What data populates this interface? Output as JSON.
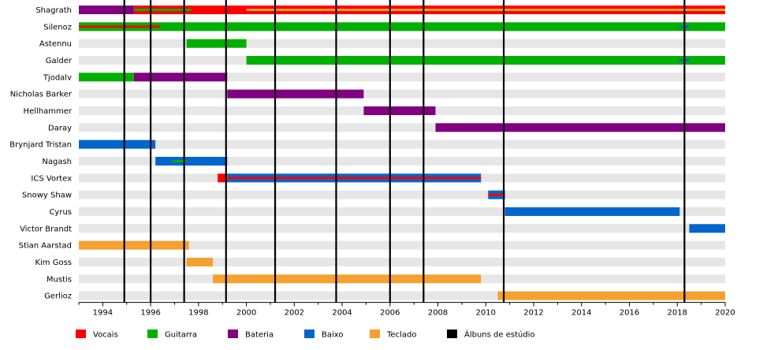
{
  "chart_data": {
    "type": "timeline",
    "xlim": [
      1993.0,
      2020.0
    ],
    "x_ticks": [
      "1994",
      "1996",
      "1998",
      "2000",
      "2002",
      "2004",
      "2006",
      "2008",
      "2010",
      "2012",
      "2014",
      "2016",
      "2018",
      "2020"
    ],
    "roles": [
      {
        "key": "vocals",
        "label": "Vocais",
        "color": "#ff0000"
      },
      {
        "key": "guitar",
        "label": "Guitarra",
        "color": "#00b000"
      },
      {
        "key": "drums",
        "label": "Bateria",
        "color": "#800080"
      },
      {
        "key": "bass",
        "label": "Baixo",
        "color": "#0066cc"
      },
      {
        "key": "keys",
        "label": "Teclado",
        "color": "#f5a030"
      },
      {
        "key": "albums",
        "label": "Álbuns de estúdio",
        "color": "#000000"
      }
    ],
    "albums": [
      1994.9,
      1996.0,
      1997.4,
      1999.15,
      2001.2,
      2003.75,
      2006.0,
      2007.4,
      2010.75,
      2018.3
    ],
    "members": [
      {
        "name": "Shagrath",
        "spans": [
          {
            "role": "drums",
            "start": 1993.0,
            "end": 1995.3
          },
          {
            "role": "vocals",
            "start": 1995.3,
            "end": 2020.0
          },
          {
            "role": "guitar",
            "start": 1995.3,
            "end": 1997.7,
            "sub": true
          },
          {
            "role": "keys",
            "start": 2000.0,
            "end": 2020.0,
            "sub": true
          }
        ]
      },
      {
        "name": "Silenoz",
        "spans": [
          {
            "role": "guitar",
            "start": 1993.0,
            "end": 2020.0
          },
          {
            "role": "vocals",
            "start": 1993.0,
            "end": 1996.4,
            "sub": true
          },
          {
            "role": "bass",
            "start": 2018.1,
            "end": 2018.5,
            "sub": true
          }
        ]
      },
      {
        "name": "Astennu",
        "spans": [
          {
            "role": "guitar",
            "start": 1997.5,
            "end": 2000.0
          }
        ]
      },
      {
        "name": "Galder",
        "spans": [
          {
            "role": "guitar",
            "start": 2000.0,
            "end": 2020.0
          },
          {
            "role": "bass",
            "start": 2018.1,
            "end": 2018.5,
            "sub": true
          }
        ]
      },
      {
        "name": "Tjodalv",
        "spans": [
          {
            "role": "guitar",
            "start": 1993.0,
            "end": 1995.3
          },
          {
            "role": "drums",
            "start": 1995.3,
            "end": 1999.2
          }
        ]
      },
      {
        "name": "Nicholas Barker",
        "spans": [
          {
            "role": "drums",
            "start": 1999.2,
            "end": 2004.9
          }
        ]
      },
      {
        "name": "Hellhammer",
        "spans": [
          {
            "role": "drums",
            "start": 2004.9,
            "end": 2007.9
          }
        ]
      },
      {
        "name": "Daray",
        "spans": [
          {
            "role": "drums",
            "start": 2007.9,
            "end": 2020.0
          }
        ]
      },
      {
        "name": "Brynjard Tristan",
        "spans": [
          {
            "role": "bass",
            "start": 1993.0,
            "end": 1996.2
          }
        ]
      },
      {
        "name": "Nagash",
        "spans": [
          {
            "role": "bass",
            "start": 1996.2,
            "end": 1999.2
          },
          {
            "role": "guitar",
            "start": 1996.9,
            "end": 1997.5,
            "sub": true
          }
        ]
      },
      {
        "name": "ICS Vortex",
        "spans": [
          {
            "role": "vocals",
            "start": 1998.8,
            "end": 1999.2
          },
          {
            "role": "bass",
            "start": 1999.2,
            "end": 2009.8
          },
          {
            "role": "vocals",
            "start": 1999.2,
            "end": 2009.8,
            "sub": true
          }
        ]
      },
      {
        "name": "Snowy Shaw",
        "spans": [
          {
            "role": "bass",
            "start": 2010.1,
            "end": 2010.8
          },
          {
            "role": "vocals",
            "start": 2010.1,
            "end": 2010.8,
            "sub": true
          }
        ]
      },
      {
        "name": "Cyrus",
        "spans": [
          {
            "role": "bass",
            "start": 2010.8,
            "end": 2018.1
          }
        ]
      },
      {
        "name": "Victor Brandt",
        "spans": [
          {
            "role": "bass",
            "start": 2018.5,
            "end": 2020.0
          }
        ]
      },
      {
        "name": "Stian Aarstad",
        "spans": [
          {
            "role": "keys",
            "start": 1993.0,
            "end": 1997.6
          }
        ]
      },
      {
        "name": "Kim Goss",
        "spans": [
          {
            "role": "keys",
            "start": 1997.5,
            "end": 1998.6
          }
        ]
      },
      {
        "name": "Mustis",
        "spans": [
          {
            "role": "keys",
            "start": 1998.6,
            "end": 2009.8
          }
        ]
      },
      {
        "name": "Gerlioz",
        "spans": [
          {
            "role": "keys",
            "start": 2010.5,
            "end": 2020.0
          }
        ]
      }
    ]
  }
}
